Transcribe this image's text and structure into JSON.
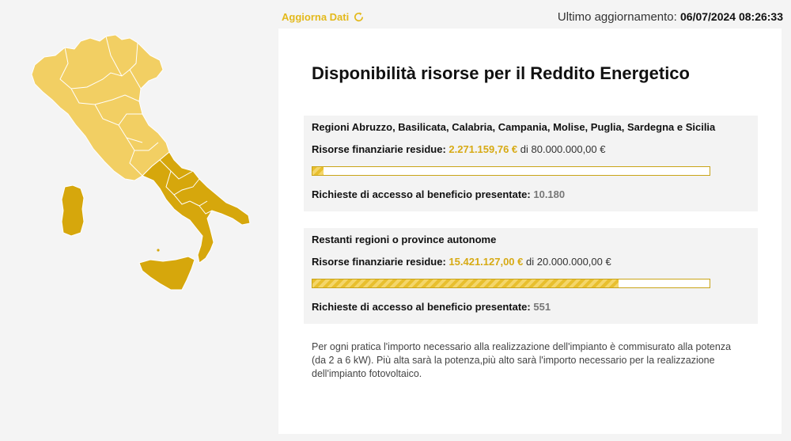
{
  "toolbar": {
    "refresh_label": "Aggiorna Dati",
    "last_update_label": "Ultimo aggiornamento:",
    "last_update_value": "06/07/2024 08:26:33"
  },
  "card": {
    "title": "Disponibilità risorse per il Reddito Energetico",
    "regions": [
      {
        "name": "Regioni Abruzzo, Basilicata, Calabria, Campania, Molise, Puglia, Sardegna e Sicilia",
        "resources_label": "Risorse finanziarie residue:",
        "resources_remaining": "2.271.159,76 €",
        "resources_total_text": "di 80.000.000,00 €",
        "progress_fraction": 0.028,
        "requests_label": "Richieste di accesso al beneficio presentate:",
        "requests_count": "10.180"
      },
      {
        "name": "Restanti regioni o province autonome",
        "resources_label": "Risorse finanziarie residue:",
        "resources_remaining": "15.421.127,00 €",
        "resources_total_text": "di 20.000.000,00 €",
        "progress_fraction": 0.771,
        "requests_label": "Richieste di accesso al beneficio presentate:",
        "requests_count": "551"
      }
    ],
    "note": "Per ogni pratica l'importo necessario alla realizzazione dell'impianto è commisurato alla potenza (da 2 a 6 kW). Più alta sarà la potenza,più alto sarà l'importo necessario per la realizzazione dell'impianto fotovoltaico."
  },
  "map": {
    "icon": "italy-map",
    "colors": {
      "other_regions": "#f2cf63",
      "southern_regions": "#d6a70c",
      "border": "#ffffff"
    }
  },
  "colors": {
    "accent": "#e3b91b",
    "amount": "#d7aa14",
    "progress_border": "#c9a418"
  }
}
